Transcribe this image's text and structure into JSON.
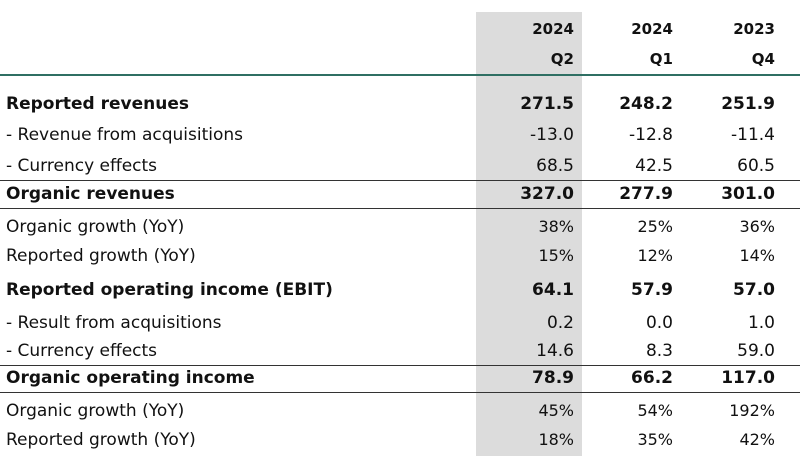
{
  "columns": [
    {
      "year": "2024",
      "quarter": "Q2"
    },
    {
      "year": "2024",
      "quarter": "Q1"
    },
    {
      "year": "2023",
      "quarter": "Q4"
    }
  ],
  "rows": [
    {
      "label": "Reported revenues",
      "values": [
        "271.5",
        "248.2",
        "251.9"
      ]
    },
    {
      "label": " - Revenue from acquisitions",
      "values": [
        "-13.0",
        "-12.8",
        "-11.4"
      ]
    },
    {
      "label": " - Currency effects",
      "values": [
        "68.5",
        "42.5",
        "60.5"
      ]
    },
    {
      "label": "Organic revenues",
      "values": [
        "327.0",
        "277.9",
        "301.0"
      ]
    },
    {
      "label": "Organic growth (YoY)",
      "values": [
        "38%",
        "25%",
        "36%"
      ]
    },
    {
      "label": "Reported growth (YoY)",
      "values": [
        "15%",
        "12%",
        "14%"
      ]
    },
    {
      "label": "Reported operating income (EBIT)",
      "values": [
        "64.1",
        "57.9",
        "57.0"
      ]
    },
    {
      "label": " - Result from acquisitions",
      "values": [
        "0.2",
        "0.0",
        "1.0"
      ]
    },
    {
      "label": " - Currency effects",
      "values": [
        "14.6",
        "8.3",
        "59.0"
      ]
    },
    {
      "label": "Organic operating income",
      "values": [
        "78.9",
        "66.2",
        "117.0"
      ]
    },
    {
      "label": "Organic growth (YoY)",
      "values": [
        "45%",
        "54%",
        "192%"
      ]
    },
    {
      "label": "Reported growth (YoY)",
      "values": [
        "18%",
        "35%",
        "42%"
      ]
    }
  ],
  "colors": {
    "rule": "#2f6f63",
    "highlight_column": "#dcdcdc"
  }
}
